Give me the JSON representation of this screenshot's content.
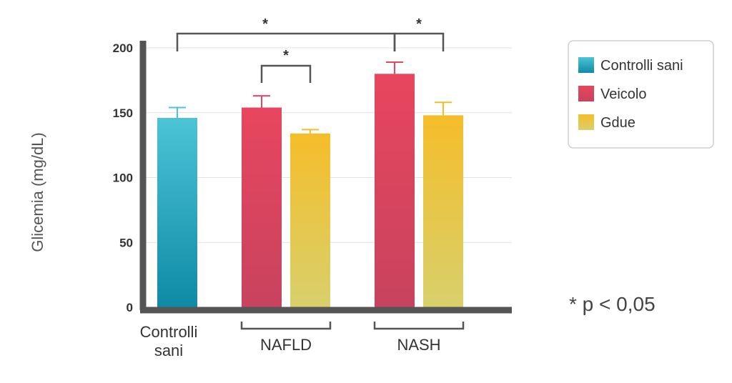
{
  "chart_data": {
    "type": "bar",
    "ylabel": "Glicemia (mg/dL)",
    "ylim": [
      0,
      200
    ],
    "yticks": [
      0,
      50,
      100,
      150,
      200
    ],
    "grid": true,
    "legend_position": "top-right",
    "groups": [
      {
        "label": "Controlli sani",
        "series": [
          "Controlli sani"
        ]
      },
      {
        "label": "NAFLD",
        "series": [
          "Veicolo",
          "Gdue"
        ]
      },
      {
        "label": "NASH",
        "series": [
          "Veicolo",
          "Gdue"
        ]
      }
    ],
    "bars": [
      {
        "group": "Controlli sani",
        "series": "Controlli sani",
        "value": 146,
        "error": 8
      },
      {
        "group": "NAFLD",
        "series": "Veicolo",
        "value": 154,
        "error": 9
      },
      {
        "group": "NAFLD",
        "series": "Gdue",
        "value": 134,
        "error": 3
      },
      {
        "group": "NASH",
        "series": "Veicolo",
        "value": 180,
        "error": 9
      },
      {
        "group": "NASH",
        "series": "Gdue",
        "value": 148,
        "error": 10
      }
    ],
    "series": [
      {
        "name": "Controlli sani",
        "colors": [
          "#4cc4d6",
          "#0f8aa6"
        ]
      },
      {
        "name": "Veicolo",
        "colors": [
          "#e8465e",
          "#c8435e"
        ]
      },
      {
        "name": "Gdue",
        "colors": [
          "#f5bd2a",
          "#d8d06c"
        ]
      }
    ],
    "significance": [
      {
        "from": 0,
        "to": 3,
        "label": "*"
      },
      {
        "from": 3,
        "to": 4,
        "label": "*"
      },
      {
        "from": 1,
        "to": 2,
        "label": "*"
      }
    ],
    "annotation": "* p < 0,05"
  }
}
